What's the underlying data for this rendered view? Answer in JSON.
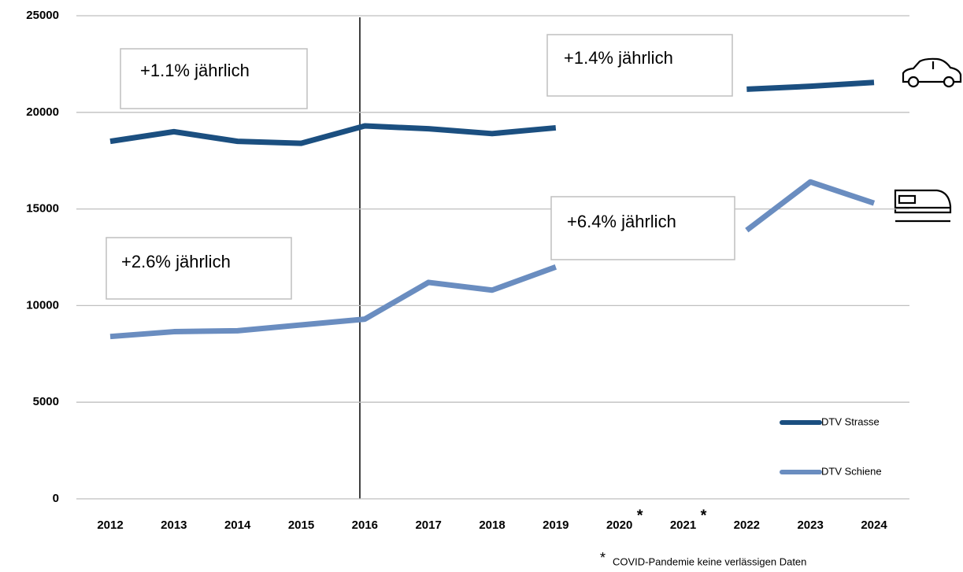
{
  "chart_data": {
    "type": "line",
    "categories": [
      "2012",
      "2013",
      "2014",
      "2015",
      "2016",
      "2017",
      "2018",
      "2019",
      "2020",
      "2021",
      "2022",
      "2023",
      "2024"
    ],
    "series": [
      {
        "name": "DTV Strasse",
        "color": "#1b4f80",
        "values": [
          18500,
          19000,
          18500,
          18400,
          19300,
          19150,
          18900,
          19200,
          null,
          null,
          21200,
          21350,
          21550
        ]
      },
      {
        "name": "DTV Schiene",
        "color": "#6a8dc0",
        "values": [
          8400,
          8650,
          8700,
          9000,
          9300,
          11200,
          10800,
          12000,
          null,
          null,
          13900,
          16400,
          15300
        ]
      }
    ],
    "ylim": [
      0,
      25000
    ],
    "yticks": [
      0,
      5000,
      10000,
      15000,
      20000,
      25000
    ],
    "grid": true,
    "annotations": [
      "+1.1% jährlich",
      "+1.4% jährlich",
      "+2.6% jährlich",
      "+6.4% jährlich"
    ],
    "footnote_marker": "*",
    "footnote": "COVID-Pandemie keine verlässigen Daten"
  }
}
